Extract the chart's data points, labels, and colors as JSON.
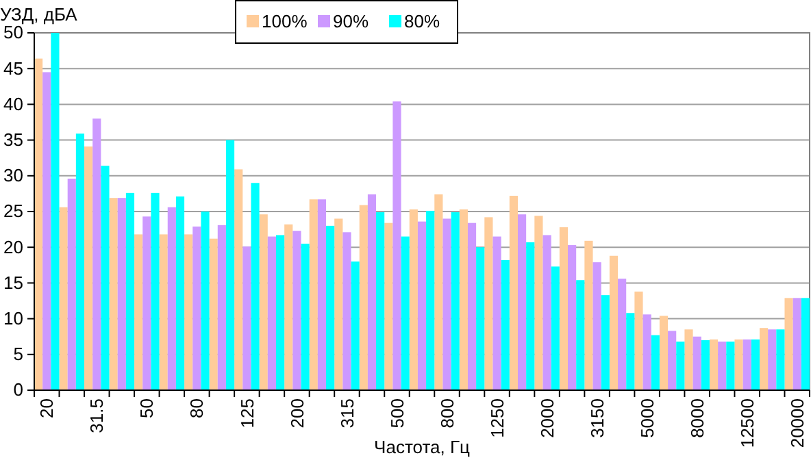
{
  "chart_data": {
    "type": "bar",
    "xlabel": "Частота, Гц",
    "ylabel": "УЗД, дБА",
    "categories": [
      "20",
      null,
      "31.5",
      null,
      "50",
      null,
      "80",
      null,
      "125",
      null,
      "200",
      null,
      "315",
      null,
      "500",
      null,
      "800",
      null,
      "1250",
      null,
      "2000",
      null,
      "3150",
      null,
      "5000",
      null,
      "8000",
      null,
      "12500",
      null,
      "20000"
    ],
    "series": [
      {
        "name": "100%",
        "color": "#ffcc99",
        "values": [
          46.4,
          25.6,
          34.1,
          26.9,
          21.8,
          21.8,
          21.8,
          21.2,
          30.9,
          24.6,
          23.2,
          26.7,
          24.0,
          25.9,
          23.4,
          25.3,
          27.4,
          25.3,
          24.2,
          27.2,
          24.4,
          22.8,
          20.9,
          18.8,
          13.8,
          10.4,
          8.5,
          7.1,
          7.1,
          8.7,
          12.9
        ]
      },
      {
        "name": "90%",
        "color": "#cc99ff",
        "values": [
          44.5,
          29.6,
          38.0,
          26.9,
          24.3,
          25.6,
          22.9,
          23.1,
          20.1,
          21.5,
          22.3,
          26.7,
          22.1,
          27.4,
          40.4,
          23.6,
          24.0,
          23.4,
          21.5,
          24.6,
          21.7,
          20.3,
          17.9,
          15.6,
          10.6,
          8.3,
          7.5,
          6.8,
          7.1,
          8.5,
          12.9
        ]
      },
      {
        "name": "80%",
        "color": "#00ffff",
        "values": [
          50,
          35.9,
          31.4,
          27.6,
          27.6,
          27.1,
          25.0,
          35.0,
          29.0,
          21.7,
          20.5,
          23.0,
          18.0,
          24.9,
          21.5,
          25.1,
          24.9,
          20.0,
          18.2,
          20.7,
          17.3,
          15.4,
          13.3,
          10.8,
          7.7,
          6.8,
          7.0,
          6.8,
          7.1,
          8.5,
          12.9
        ]
      }
    ],
    "ylim": [
      0,
      50
    ],
    "yticks": [
      0,
      5,
      10,
      15,
      20,
      25,
      30,
      35,
      40,
      45,
      50
    ],
    "grid": "y",
    "legend": "top"
  }
}
